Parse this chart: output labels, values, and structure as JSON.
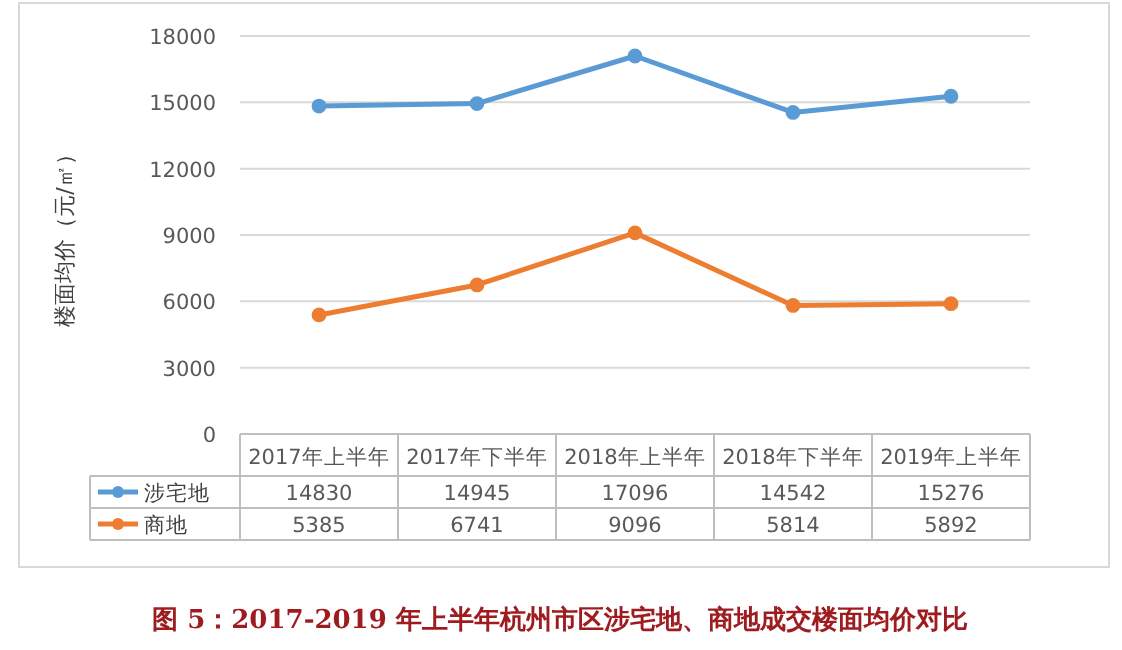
{
  "chart_data": {
    "type": "line",
    "title": "图 5：2017-2019 年上半年杭州市区涉宅地、商地成交楼面均价对比",
    "ylabel": "楼面均价（元/㎡）",
    "categories": [
      "2017年上半年",
      "2017年下半年",
      "2018年上半年",
      "2018年下半年",
      "2019年上半年"
    ],
    "series": [
      {
        "name": "涉宅地",
        "color": "#5b9bd5",
        "values": [
          14830,
          14945,
          17096,
          14542,
          15276
        ]
      },
      {
        "name": "商地",
        "color": "#ed7d31",
        "values": [
          5385,
          6741,
          9096,
          5814,
          5892
        ]
      }
    ],
    "ylim": [
      0,
      18000
    ],
    "yticks": [
      0,
      3000,
      6000,
      9000,
      12000,
      15000,
      18000
    ],
    "grid": "y",
    "marker": "circle",
    "data_labels": true,
    "legend": "bottom"
  }
}
